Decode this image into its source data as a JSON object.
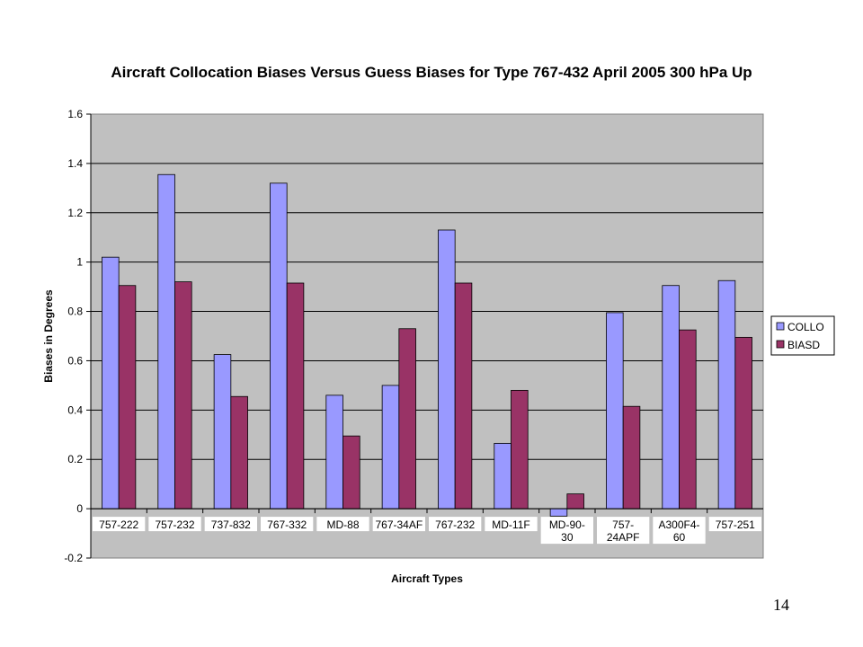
{
  "page_number": "14",
  "chart_data": {
    "type": "bar",
    "title": "Aircraft Collocation Biases Versus Guess Biases for Type 767-432 April 2005 300 hPa Up",
    "xlabel": "Aircraft Types",
    "ylabel": "Biases in Degrees",
    "ylim": [
      -0.2,
      1.6
    ],
    "yticks": [
      -0.2,
      0,
      0.2,
      0.4,
      0.6,
      0.8,
      1,
      1.2,
      1.4,
      1.6
    ],
    "ytick_labels": [
      "-0.2",
      "0",
      "0.2",
      "0.4",
      "0.6",
      "0.8",
      "1",
      "1.2",
      "1.4",
      "1.6"
    ],
    "grid": true,
    "legend_position": "right",
    "categories": [
      [
        "757-222"
      ],
      [
        "757-232"
      ],
      [
        "737-832"
      ],
      [
        "767-332"
      ],
      [
        "MD-88"
      ],
      [
        "767-34AF"
      ],
      [
        "767-232"
      ],
      [
        "MD-11F"
      ],
      [
        "MD-90-",
        "30"
      ],
      [
        "757-",
        "24APF"
      ],
      [
        "A300F4-",
        "60"
      ],
      [
        "757-251"
      ]
    ],
    "series": [
      {
        "name": "COLLO",
        "color": "#9999FF",
        "values": [
          1.02,
          1.355,
          0.625,
          1.32,
          0.46,
          0.5,
          1.13,
          0.265,
          -0.03,
          0.795,
          0.905,
          0.925
        ]
      },
      {
        "name": "BIASD",
        "color": "#993366",
        "values": [
          0.905,
          0.92,
          0.455,
          0.915,
          0.295,
          0.73,
          0.915,
          0.48,
          0.06,
          0.415,
          0.725,
          0.695
        ]
      }
    ],
    "plot_background": "#C0C0C0"
  }
}
